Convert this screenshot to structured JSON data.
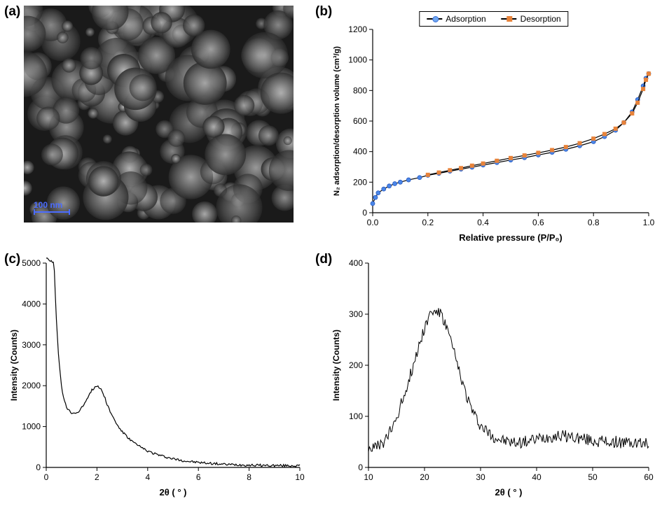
{
  "panel_labels": {
    "a": "(a)",
    "b": "(b)",
    "c": "(c)",
    "d": "(d)"
  },
  "sem": {
    "scalebar_label": "100 nm",
    "scalebar_color": "#4b6cff"
  },
  "panel_b": {
    "type": "line-scatter",
    "xlabel": "Relative pressure (P/P₀)",
    "ylabel": "N₂ adsorption/desorption volume (cm³/g)",
    "xlim": [
      0,
      1
    ],
    "xtick_step": 0.2,
    "ylim": [
      0,
      1200
    ],
    "ytick_step": 200,
    "legend": {
      "ads": "Adsorption",
      "des": "Desorption"
    },
    "series_colors": {
      "ads_line": "#000000",
      "ads_marker": "#4a86e8",
      "des_line": "#000000",
      "des_marker": "#e8833a"
    },
    "marker_size": 6,
    "adsorption": [
      [
        0.0,
        60
      ],
      [
        0.01,
        100
      ],
      [
        0.02,
        130
      ],
      [
        0.04,
        155
      ],
      [
        0.06,
        175
      ],
      [
        0.08,
        190
      ],
      [
        0.1,
        200
      ],
      [
        0.13,
        215
      ],
      [
        0.17,
        230
      ],
      [
        0.2,
        245
      ],
      [
        0.24,
        258
      ],
      [
        0.28,
        272
      ],
      [
        0.32,
        285
      ],
      [
        0.36,
        298
      ],
      [
        0.4,
        312
      ],
      [
        0.45,
        328
      ],
      [
        0.5,
        345
      ],
      [
        0.55,
        360
      ],
      [
        0.6,
        378
      ],
      [
        0.65,
        395
      ],
      [
        0.7,
        415
      ],
      [
        0.75,
        438
      ],
      [
        0.8,
        465
      ],
      [
        0.84,
        498
      ],
      [
        0.88,
        540
      ],
      [
        0.91,
        590
      ],
      [
        0.94,
        660
      ],
      [
        0.96,
        740
      ],
      [
        0.98,
        830
      ],
      [
        0.99,
        880
      ],
      [
        1.0,
        910
      ]
    ],
    "desorption": [
      [
        1.0,
        910
      ],
      [
        0.99,
        870
      ],
      [
        0.98,
        810
      ],
      [
        0.96,
        720
      ],
      [
        0.94,
        650
      ],
      [
        0.91,
        590
      ],
      [
        0.88,
        550
      ],
      [
        0.84,
        515
      ],
      [
        0.8,
        485
      ],
      [
        0.75,
        455
      ],
      [
        0.7,
        430
      ],
      [
        0.65,
        410
      ],
      [
        0.6,
        392
      ],
      [
        0.55,
        375
      ],
      [
        0.5,
        358
      ],
      [
        0.45,
        340
      ],
      [
        0.4,
        322
      ],
      [
        0.36,
        308
      ],
      [
        0.32,
        292
      ],
      [
        0.28,
        278
      ],
      [
        0.24,
        263
      ],
      [
        0.2,
        248
      ]
    ],
    "label_fontsize": 13,
    "tick_fontsize": 12
  },
  "panel_c": {
    "type": "line",
    "xlabel": "2θ ( ° )",
    "ylabel": "Intensity (Counts)",
    "xlim": [
      0,
      10
    ],
    "xtick_step": 2,
    "ylim": [
      0,
      5000
    ],
    "ytick_step": 1000,
    "line_color": "#000000",
    "line_width": 1.2,
    "data": [
      [
        0.28,
        5000
      ],
      [
        0.32,
        4800
      ],
      [
        0.4,
        3600
      ],
      [
        0.5,
        2600
      ],
      [
        0.6,
        2000
      ],
      [
        0.7,
        1650
      ],
      [
        0.8,
        1470
      ],
      [
        0.9,
        1380
      ],
      [
        1.0,
        1330
      ],
      [
        1.1,
        1320
      ],
      [
        1.2,
        1340
      ],
      [
        1.3,
        1390
      ],
      [
        1.4,
        1460
      ],
      [
        1.5,
        1560
      ],
      [
        1.6,
        1680
      ],
      [
        1.7,
        1800
      ],
      [
        1.8,
        1890
      ],
      [
        1.9,
        1960
      ],
      [
        2.0,
        1990
      ],
      [
        2.1,
        1960
      ],
      [
        2.2,
        1870
      ],
      [
        2.3,
        1730
      ],
      [
        2.4,
        1550
      ],
      [
        2.6,
        1260
      ],
      [
        2.8,
        1040
      ],
      [
        3.0,
        870
      ],
      [
        3.3,
        680
      ],
      [
        3.6,
        540
      ],
      [
        4.0,
        400
      ],
      [
        4.5,
        290
      ],
      [
        5.0,
        210
      ],
      [
        5.5,
        155
      ],
      [
        6.0,
        120
      ],
      [
        7.0,
        75
      ],
      [
        8.0,
        55
      ],
      [
        9.0,
        45
      ],
      [
        10.0,
        40
      ]
    ],
    "noise_amp": 30
  },
  "panel_d": {
    "type": "line",
    "xlabel": "2θ ( ° )",
    "ylabel": "Intensity (Counts)",
    "xlim": [
      10,
      60
    ],
    "xtick_step": 10,
    "ylim": [
      0,
      400
    ],
    "ytick_step": 100,
    "line_color": "#000000",
    "line_width": 1.0,
    "data": [
      [
        10,
        40
      ],
      [
        11,
        38
      ],
      [
        12,
        42
      ],
      [
        13,
        52
      ],
      [
        14,
        72
      ],
      [
        15,
        98
      ],
      [
        16,
        130
      ],
      [
        17,
        165
      ],
      [
        18,
        200
      ],
      [
        19,
        238
      ],
      [
        20,
        275
      ],
      [
        21,
        300
      ],
      [
        22,
        308
      ],
      [
        23,
        298
      ],
      [
        24,
        272
      ],
      [
        25,
        235
      ],
      [
        26,
        195
      ],
      [
        27,
        158
      ],
      [
        28,
        126
      ],
      [
        29,
        100
      ],
      [
        30,
        82
      ],
      [
        32,
        62
      ],
      [
        34,
        52
      ],
      [
        36,
        48
      ],
      [
        38,
        50
      ],
      [
        40,
        55
      ],
      [
        42,
        60
      ],
      [
        44,
        62
      ],
      [
        46,
        60
      ],
      [
        48,
        56
      ],
      [
        50,
        52
      ],
      [
        52,
        50
      ],
      [
        54,
        50
      ],
      [
        56,
        48
      ],
      [
        58,
        47
      ],
      [
        60,
        46
      ]
    ],
    "noise_amp": 12
  }
}
